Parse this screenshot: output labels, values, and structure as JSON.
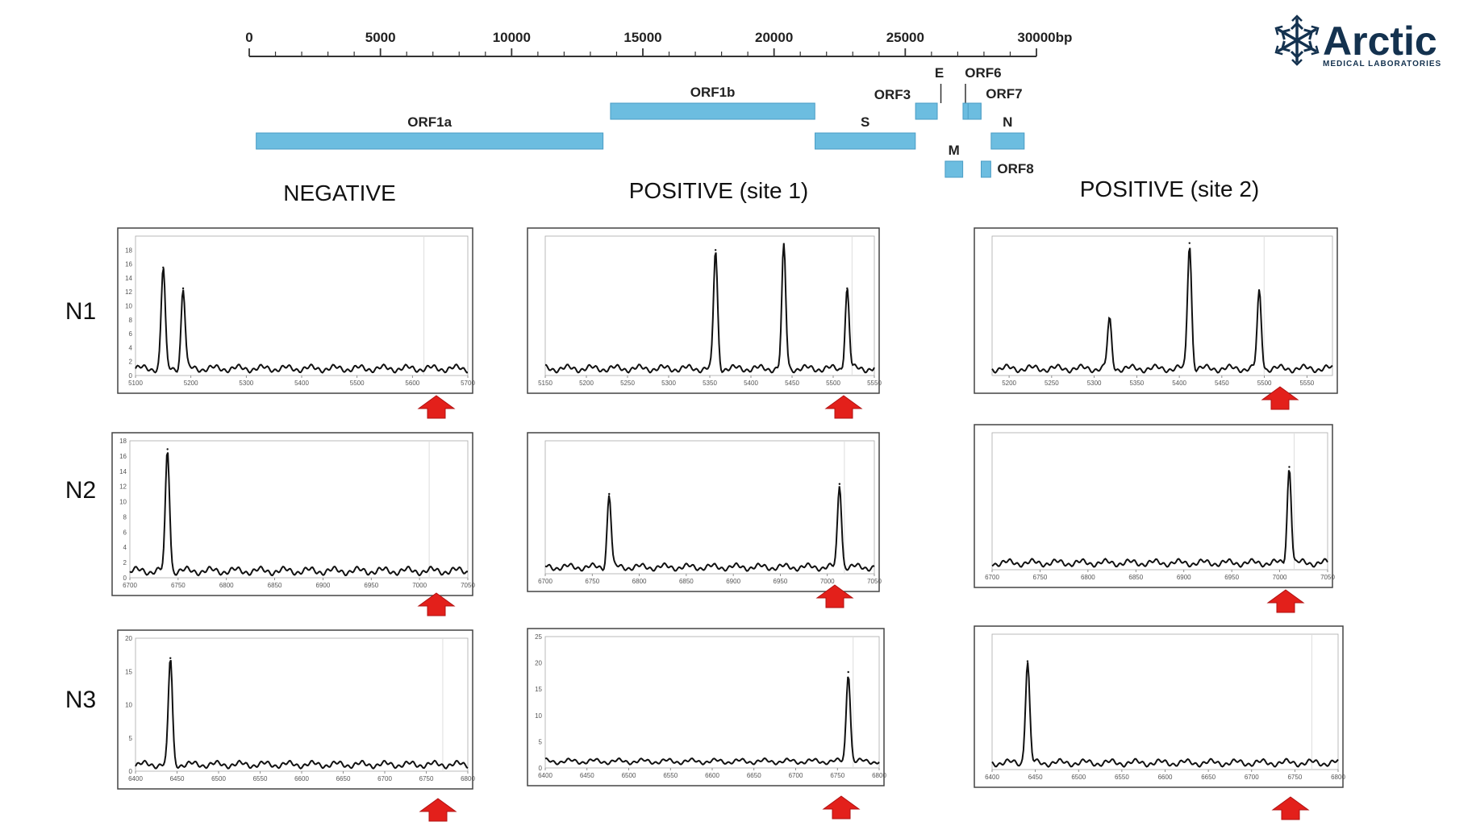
{
  "logo": {
    "name": "Arctic",
    "subtitle": "MEDICAL LABORATORIES",
    "color": "#14324f"
  },
  "genome_map": {
    "unit": "bp",
    "axis_min": 0,
    "axis_max": 30000,
    "major_ticks": [
      0,
      5000,
      10000,
      15000,
      20000,
      25000,
      30000
    ],
    "minor_step": 1000,
    "bar_color": "#6cbde0",
    "genes": [
      {
        "label": "ORF1a",
        "start": 266,
        "end": 13483,
        "track": 2
      },
      {
        "label": "ORF1b",
        "start": 13768,
        "end": 21555,
        "track": 1
      },
      {
        "label": "S",
        "start": 21563,
        "end": 25384,
        "track": 2
      },
      {
        "label": "ORF3",
        "start": 25393,
        "end": 26220,
        "track": 1
      },
      {
        "label": "E",
        "start": 26245,
        "end": 26472,
        "track": 1
      },
      {
        "label": "M",
        "start": 26523,
        "end": 27191,
        "track": 3
      },
      {
        "label": "ORF6",
        "start": 27202,
        "end": 27387,
        "track": 1
      },
      {
        "label": "ORF7",
        "start": 27394,
        "end": 27887,
        "track": 1
      },
      {
        "label": "ORF8",
        "start": 27894,
        "end": 28259,
        "track": 3
      },
      {
        "label": "N",
        "start": 28274,
        "end": 29533,
        "track": 2
      }
    ]
  },
  "columns": [
    "NEGATIVE",
    "POSITIVE (site 1)",
    "POSITIVE (site 2)"
  ],
  "rows": [
    "N1",
    "N2",
    "N3"
  ],
  "arrow_color": "#e3201b",
  "chart_data": [
    {
      "type": "line",
      "row": "N1",
      "column": "NEGATIVE",
      "xlim": [
        5100,
        5700
      ],
      "ylim": [
        0,
        20
      ],
      "xticks": [
        5100,
        5200,
        5300,
        5400,
        5500,
        5600,
        5700
      ],
      "yticks": [
        0,
        2,
        4,
        6,
        8,
        10,
        12,
        14,
        16,
        18
      ],
      "peaks": [
        {
          "x": 5150,
          "y": 14.5
        },
        {
          "x": 5186,
          "y": 11.5
        }
      ],
      "marker_x": 5612
    },
    {
      "type": "line",
      "row": "N1",
      "column": "POSITIVE (site 1)",
      "xlim": [
        5150,
        5550
      ],
      "ylim": [
        0,
        20
      ],
      "xticks": [
        5150,
        5200,
        5250,
        5300,
        5350,
        5400,
        5450,
        5500,
        5550
      ],
      "yticks": [],
      "peaks": [
        {
          "x": 5357,
          "y": 17
        },
        {
          "x": 5440,
          "y": 17.5
        },
        {
          "x": 5517,
          "y": 11.5
        }
      ],
      "marker_x": 5517
    },
    {
      "type": "line",
      "row": "N1",
      "column": "POSITIVE (site 2)",
      "xlim": [
        5180,
        5580
      ],
      "ylim": [
        0,
        20
      ],
      "xticks": [
        5200,
        5250,
        5300,
        5350,
        5400,
        5450,
        5500,
        5550
      ],
      "yticks": [],
      "peaks": [
        {
          "x": 5318,
          "y": 7
        },
        {
          "x": 5412,
          "y": 18
        },
        {
          "x": 5494,
          "y": 11
        }
      ],
      "marker_x": 5494
    },
    {
      "type": "line",
      "row": "N2",
      "column": "NEGATIVE",
      "xlim": [
        6700,
        7050
      ],
      "ylim": [
        0,
        18
      ],
      "xticks": [
        6700,
        6750,
        6800,
        6850,
        6900,
        6950,
        7000,
        7050
      ],
      "yticks": [
        0,
        2,
        4,
        6,
        8,
        10,
        12,
        14,
        16,
        18
      ],
      "peaks": [
        {
          "x": 6739,
          "y": 16
        }
      ],
      "marker_x": 7005
    },
    {
      "type": "line",
      "row": "N2",
      "column": "POSITIVE (site 1)",
      "xlim": [
        6700,
        7050
      ],
      "ylim": [
        0,
        20
      ],
      "xticks": [
        6700,
        6750,
        6800,
        6850,
        6900,
        6950,
        7000,
        7050
      ],
      "yticks": [],
      "peaks": [
        {
          "x": 6768,
          "y": 11
        },
        {
          "x": 7013,
          "y": 12.5
        }
      ],
      "marker_x": 7013
    },
    {
      "type": "line",
      "row": "N2",
      "column": "POSITIVE (site 2)",
      "xlim": [
        6700,
        7050
      ],
      "ylim": [
        0,
        20
      ],
      "xticks": [
        6700,
        6750,
        6800,
        6850,
        6900,
        6950,
        7000,
        7050
      ],
      "yticks": [],
      "peaks": [
        {
          "x": 7010,
          "y": 14
        }
      ],
      "marker_x": 7010
    },
    {
      "type": "line",
      "row": "N3",
      "column": "NEGATIVE",
      "xlim": [
        6400,
        6800
      ],
      "ylim": [
        0,
        20
      ],
      "xticks": [
        6400,
        6450,
        6500,
        6550,
        6600,
        6650,
        6700,
        6750,
        6800
      ],
      "yticks": [
        0,
        5,
        10,
        15,
        20
      ],
      "peaks": [
        {
          "x": 6442,
          "y": 16
        }
      ],
      "marker_x": 6764
    },
    {
      "type": "line",
      "row": "N3",
      "column": "POSITIVE (site 1)",
      "xlim": [
        6400,
        6800
      ],
      "ylim": [
        0,
        25
      ],
      "xticks": [
        6400,
        6450,
        6500,
        6550,
        6600,
        6650,
        6700,
        6750,
        6800
      ],
      "yticks": [
        0,
        5,
        10,
        15,
        20,
        25
      ],
      "peaks": [
        {
          "x": 6763,
          "y": 17
        }
      ],
      "marker_x": 6763
    },
    {
      "type": "line",
      "row": "N3",
      "column": "POSITIVE (site 2)",
      "xlim": [
        6400,
        6800
      ],
      "ylim": [
        0,
        20
      ],
      "xticks": [
        6400,
        6450,
        6500,
        6550,
        6600,
        6650,
        6700,
        6750,
        6800
      ],
      "yticks": [],
      "peaks": [
        {
          "x": 6441,
          "y": 15
        }
      ],
      "marker_x": 6764
    }
  ]
}
